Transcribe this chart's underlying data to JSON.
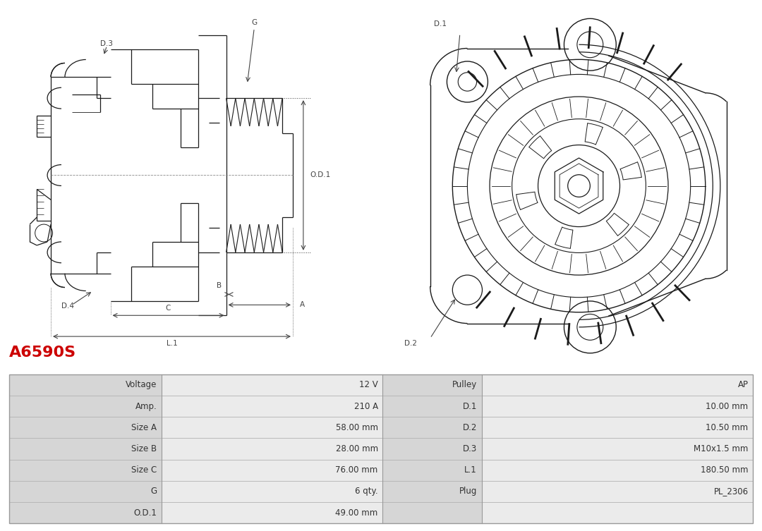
{
  "title": "A6590S",
  "title_color": "#cc0000",
  "title_fontsize": 16,
  "table_rows": [
    [
      "Voltage",
      "12 V",
      "Pulley",
      "AP"
    ],
    [
      "Amp.",
      "210 A",
      "D.1",
      "10.00 mm"
    ],
    [
      "Size A",
      "58.00 mm",
      "D.2",
      "10.50 mm"
    ],
    [
      "Size B",
      "28.00 mm",
      "D.3",
      "M10x1.5 mm"
    ],
    [
      "Size C",
      "76.00 mm",
      "L.1",
      "180.50 mm"
    ],
    [
      "G",
      "6 qty.",
      "Plug",
      "PL_2306"
    ],
    [
      "O.D.1",
      "49.00 mm",
      "",
      ""
    ]
  ],
  "line_color": "#1a1a1a",
  "dim_color": "#444444",
  "bg_color": "#ffffff",
  "table_col1_bg": "#d4d4d4",
  "table_col2_bg": "#ebebeb",
  "table_col3_bg": "#d4d4d4",
  "table_col4_bg": "#ebebeb",
  "text_color": "#333333"
}
